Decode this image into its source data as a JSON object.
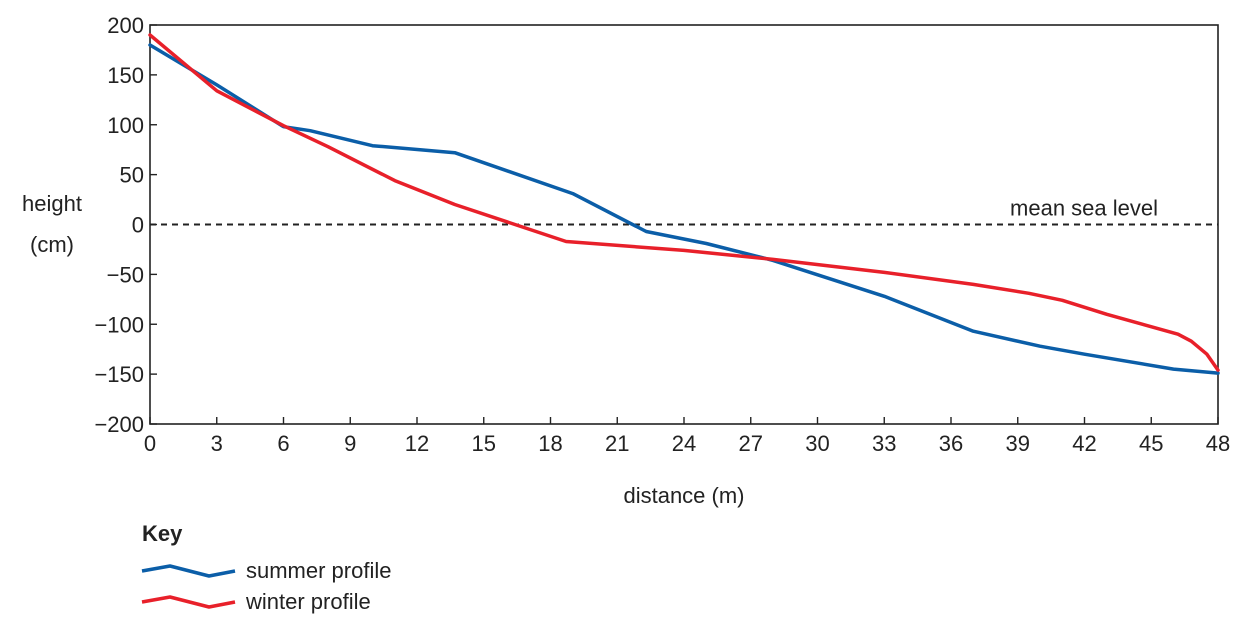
{
  "chart_data": {
    "type": "line",
    "xlabel": "distance (m)",
    "ylabel_line1": "height",
    "ylabel_line2": "(cm)",
    "xlim": [
      0,
      48
    ],
    "ylim": [
      -200,
      200
    ],
    "xticks": [
      0,
      3,
      6,
      9,
      12,
      15,
      18,
      21,
      24,
      27,
      30,
      33,
      36,
      39,
      42,
      45,
      48
    ],
    "yticks": [
      200,
      150,
      100,
      50,
      0,
      -50,
      -100,
      -150,
      -200
    ],
    "ytick_labels": [
      "200",
      "150",
      "100",
      "50",
      "0",
      "−50",
      "−100",
      "−150",
      "−200"
    ],
    "grid": false,
    "reference_line": {
      "y": 0,
      "label": "mean sea level",
      "style": "dashed"
    },
    "legend_title": "Key",
    "legend_position": "bottom-left",
    "series": [
      {
        "name": "summer profile",
        "color": "#0b5ea8",
        "x": [
          0,
          3,
          6,
          7.2,
          10,
          13.7,
          19,
          22.3,
          25,
          28,
          33,
          37,
          40,
          42,
          46,
          48
        ],
        "y": [
          180,
          140,
          98,
          94,
          79,
          72,
          31,
          -7,
          -19,
          -36,
          -72,
          -107,
          -122,
          -130,
          -145,
          -149
        ]
      },
      {
        "name": "winter profile",
        "color": "#e8202a",
        "x": [
          0,
          3,
          6,
          8,
          11,
          13.7,
          18.7,
          24,
          28,
          33,
          37,
          39.5,
          41,
          43,
          46.2,
          46.8,
          47.5,
          48
        ],
        "y": [
          190,
          134,
          99,
          78,
          44,
          20,
          -17,
          -26,
          -35,
          -48,
          -60,
          -69,
          -76,
          -90,
          -110,
          -117,
          -130,
          -146
        ]
      }
    ]
  }
}
